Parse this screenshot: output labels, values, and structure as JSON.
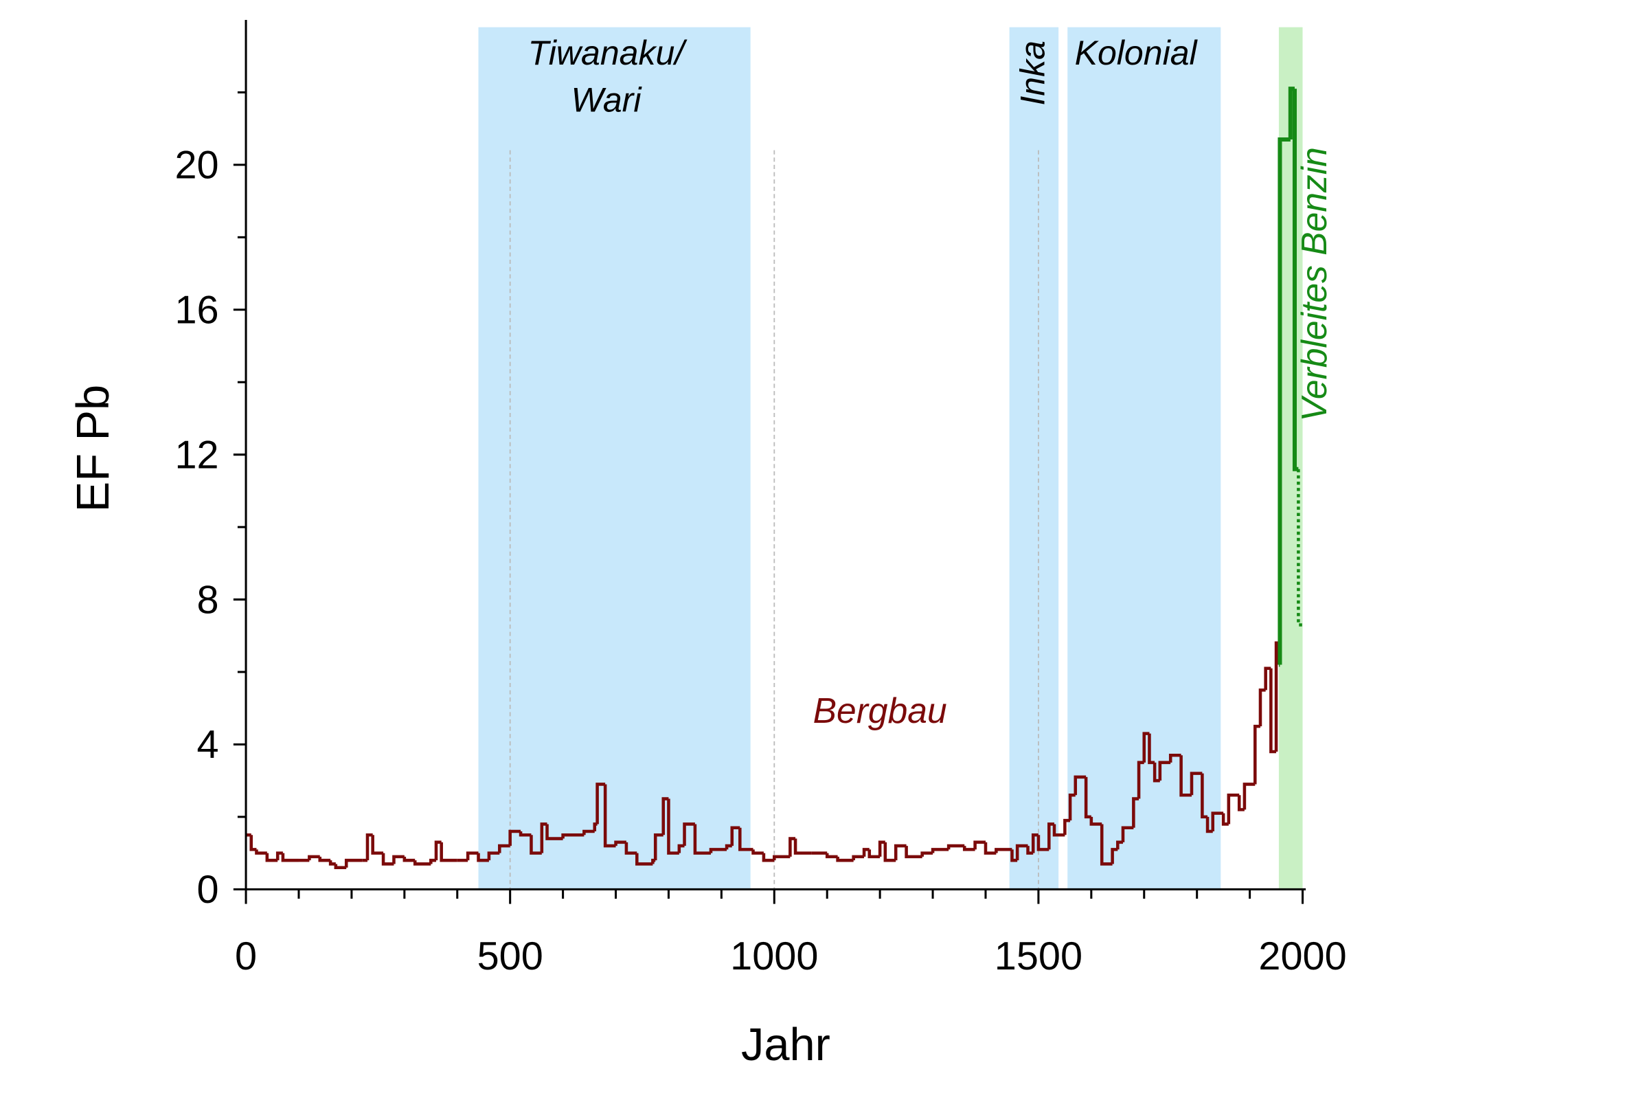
{
  "chart_data": {
    "type": "step",
    "x_label": "Jahr",
    "y_label": "EF Pb",
    "xlim": [
      0,
      2000
    ],
    "ylim": [
      0,
      24
    ],
    "xticks": [
      0,
      500,
      1000,
      1500,
      2000
    ],
    "yticks": [
      0,
      4,
      8,
      12,
      16,
      20
    ],
    "xticks_minor": [
      100,
      200,
      300,
      400,
      600,
      700,
      800,
      900,
      1100,
      1200,
      1300,
      1400,
      1600,
      1700,
      1800,
      1900
    ],
    "yticks_minor": [
      2,
      6,
      10,
      14,
      18,
      22
    ],
    "reference_lines": [
      500,
      1000,
      1500
    ],
    "bands": [
      {
        "label": [
          "Tiwanaku/",
          "Wari"
        ],
        "start": 440,
        "end": 955,
        "color": "#c8e8fb"
      },
      {
        "label": [
          "Inka"
        ],
        "start": 1445,
        "end": 1538,
        "color": "#c8e8fb",
        "rotated": true
      },
      {
        "label": [
          "Kolonial"
        ],
        "start": 1555,
        "end": 1845,
        "color": "#c8e8fb"
      },
      {
        "start": 1955,
        "end": 2000,
        "color": "#c9f0c4"
      }
    ],
    "series": [
      {
        "name": "Bergbau",
        "color": "#7b0a0a",
        "x": [
          0,
          10,
          20,
          40,
          60,
          70,
          100,
          120,
          140,
          160,
          170,
          190,
          220,
          230,
          240,
          260,
          280,
          300,
          320,
          350,
          360,
          370,
          400,
          420,
          440,
          460,
          480,
          500,
          520,
          540,
          560,
          570,
          600,
          640,
          660,
          665,
          680,
          700,
          720,
          740,
          770,
          775,
          790,
          800,
          820,
          830,
          850,
          880,
          910,
          920,
          935,
          960,
          980,
          1000,
          1030,
          1040,
          1070,
          1100,
          1120,
          1150,
          1170,
          1180,
          1200,
          1210,
          1230,
          1250,
          1280,
          1300,
          1330,
          1360,
          1380,
          1400,
          1420,
          1450,
          1460,
          1480,
          1490,
          1500,
          1520,
          1530,
          1550,
          1560,
          1570,
          1590,
          1600,
          1620,
          1640,
          1650,
          1660,
          1680,
          1690,
          1700,
          1710,
          1720,
          1730,
          1750,
          1770,
          1790,
          1810,
          1820,
          1830,
          1850,
          1860,
          1880,
          1890,
          1910,
          1920,
          1930,
          1940,
          1950,
          1955
        ],
        "values": [
          1.5,
          1.1,
          1.0,
          0.8,
          1.0,
          0.8,
          0.8,
          0.9,
          0.8,
          0.7,
          0.6,
          0.8,
          0.8,
          1.5,
          1.0,
          0.7,
          0.9,
          0.8,
          0.7,
          0.8,
          1.3,
          0.8,
          0.8,
          1.0,
          0.8,
          1.0,
          1.2,
          1.6,
          1.5,
          1.0,
          1.8,
          1.4,
          1.5,
          1.6,
          1.8,
          2.9,
          1.2,
          1.3,
          1.0,
          0.7,
          0.8,
          1.5,
          2.5,
          1.0,
          1.2,
          1.8,
          1.0,
          1.1,
          1.2,
          1.7,
          1.1,
          1.0,
          0.8,
          0.9,
          1.4,
          1.0,
          1.0,
          0.9,
          0.8,
          0.9,
          1.1,
          0.9,
          1.3,
          0.8,
          1.2,
          0.9,
          1.0,
          1.1,
          1.2,
          1.1,
          1.3,
          1.0,
          1.1,
          0.8,
          1.2,
          1.0,
          1.5,
          1.1,
          1.8,
          1.5,
          1.9,
          2.6,
          3.1,
          2.0,
          1.8,
          0.7,
          1.1,
          1.3,
          1.7,
          2.5,
          3.5,
          4.3,
          3.5,
          3.0,
          3.5,
          3.7,
          2.6,
          3.2,
          2.0,
          1.6,
          2.1,
          1.8,
          2.6,
          2.2,
          2.9,
          4.5,
          5.5,
          6.1,
          3.8,
          6.8,
          6.2
        ],
        "label_x": 1200,
        "label_y": 4.6
      },
      {
        "name": "Verbleites Benzin",
        "color": "#168a16",
        "x": [
          1955,
          1957,
          1977,
          1985,
          1992,
          2000
        ],
        "values": [
          6.2,
          20.7,
          22.1,
          11.6,
          7.3,
          7.3
        ],
        "label_x": 2045,
        "label_y": 16.7
      }
    ]
  }
}
